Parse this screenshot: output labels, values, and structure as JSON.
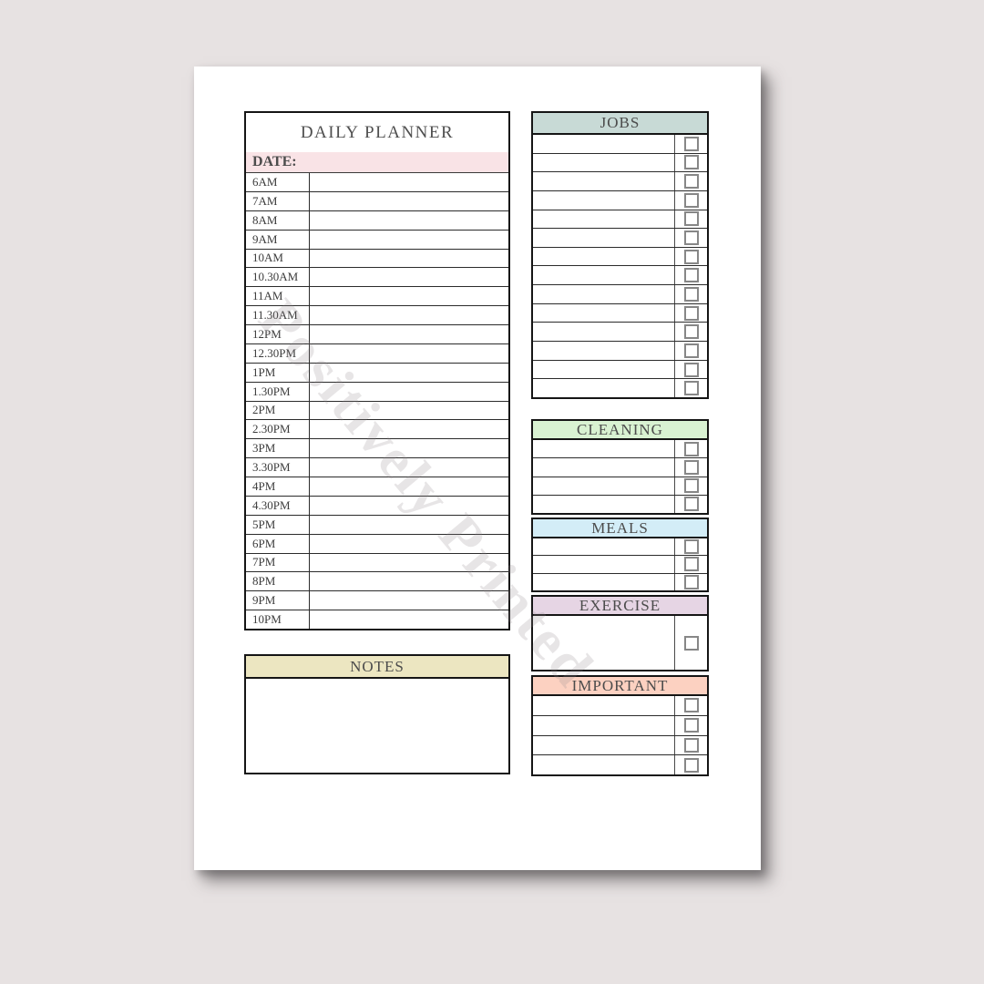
{
  "planner": {
    "title": "DAILY PLANNER",
    "date_label": "DATE:",
    "times": [
      "6AM",
      "7AM",
      "8AM",
      "9AM",
      "10AM",
      "10.30AM",
      "11AM",
      "11.30AM",
      "12PM",
      "12.30PM",
      "1PM",
      "1.30PM",
      "2PM",
      "2.30PM",
      "3PM",
      "3.30PM",
      "4PM",
      "4.30PM",
      "5PM",
      "6PM",
      "7PM",
      "8PM",
      "9PM",
      "10PM"
    ]
  },
  "notes": {
    "label": "NOTES",
    "header_color": "#ece6c1"
  },
  "sections": {
    "jobs": {
      "label": "JOBS",
      "rows": 14,
      "header_color": "#c8dad6"
    },
    "cleaning": {
      "label": "CLEANING",
      "rows": 4,
      "header_color": "#d9f2d2"
    },
    "meals": {
      "label": "MEALS",
      "rows": 3,
      "header_color": "#d3edf7"
    },
    "exercise": {
      "label": "EXERCISE",
      "header_color": "#e6d5e4"
    },
    "important": {
      "label": "IMPORTANT",
      "rows": 4,
      "header_color": "#fcd1c1"
    }
  },
  "colors": {
    "date_row": "#f9e3e6",
    "backdrop": "#e7e2e2",
    "page": "#ffffff",
    "border": "#151515",
    "text": "#4a4a4a"
  },
  "watermark": {
    "text": "Positively Printed"
  }
}
